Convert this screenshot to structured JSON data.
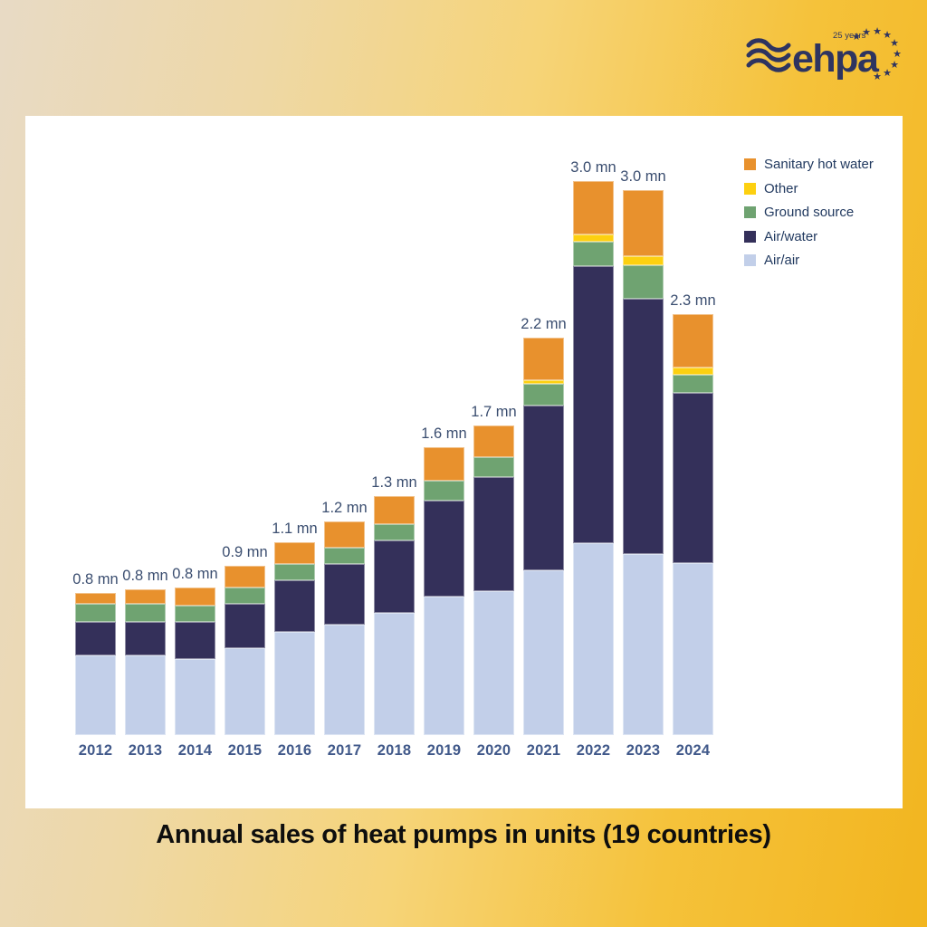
{
  "logo": {
    "brand": "ehpa",
    "anniversary": "25 years"
  },
  "caption": {
    "text": "Annual sales of heat pumps in units (19 countries)"
  },
  "colors": {
    "background_left": "#e8dac5",
    "background_right": "#f2b51f",
    "panel": "#ffffff",
    "logo_navy": "#2e3460",
    "value_label_text": "#3b4e70",
    "axis_label_text": "#41598a",
    "legend_text": "#21395f",
    "sanitary_hot_water": "#e8912d",
    "other": "#fdd010",
    "ground_source": "#6fa371",
    "air_water": "#34305a",
    "air_air": "#c2cfe9"
  },
  "legend": {
    "items": [
      {
        "label": "Sanitary hot water",
        "color": "#e8912d"
      },
      {
        "label": "Other",
        "color": "#fdd010"
      },
      {
        "label": "Ground source",
        "color": "#6fa371"
      },
      {
        "label": "Air/water",
        "color": "#34305a"
      },
      {
        "label": "Air/air",
        "color": "#c2cfe9"
      }
    ]
  },
  "chart_data": {
    "type": "bar",
    "stacked": true,
    "title": "Annual sales of heat pumps in units (19 countries)",
    "unit": "mn (million units)",
    "legend_position": "top-right",
    "gridlines": false,
    "axes_visible": false,
    "ylim": [
      0,
      3.2
    ],
    "categories": [
      "2012",
      "2013",
      "2014",
      "2015",
      "2016",
      "2017",
      "2018",
      "2019",
      "2020",
      "2021",
      "2022",
      "2023",
      "2024"
    ],
    "bar_total_labels": [
      "0.8 mn",
      "0.8 mn",
      "0.8 mn",
      "0.9 mn",
      "1.1 mn",
      "1.2 mn",
      "1.3 mn",
      "1.6 mn",
      "1.7 mn",
      "2.2 mn",
      "3.0 mn",
      "3.0 mn",
      "2.3 mn"
    ],
    "series": [
      {
        "name": "Air/air",
        "color": "#c2cfe9",
        "values": [
          0.43,
          0.43,
          0.41,
          0.47,
          0.56,
          0.6,
          0.66,
          0.75,
          0.78,
          0.89,
          1.04,
          0.98,
          0.93
        ]
      },
      {
        "name": "Air/water",
        "color": "#34305a",
        "values": [
          0.18,
          0.18,
          0.2,
          0.24,
          0.28,
          0.33,
          0.39,
          0.52,
          0.62,
          0.89,
          1.5,
          1.38,
          0.92
        ]
      },
      {
        "name": "Ground source",
        "color": "#6fa371",
        "values": [
          0.1,
          0.1,
          0.09,
          0.09,
          0.09,
          0.09,
          0.09,
          0.11,
          0.11,
          0.12,
          0.13,
          0.18,
          0.1
        ]
      },
      {
        "name": "Other",
        "color": "#fdd010",
        "values": [
          0,
          0,
          0,
          0,
          0,
          0,
          0,
          0,
          0,
          0.02,
          0.04,
          0.05,
          0.04
        ]
      },
      {
        "name": "Sanitary hot water",
        "color": "#e8912d",
        "values": [
          0.06,
          0.08,
          0.1,
          0.12,
          0.12,
          0.14,
          0.15,
          0.18,
          0.17,
          0.23,
          0.29,
          0.36,
          0.29
        ]
      }
    ]
  }
}
